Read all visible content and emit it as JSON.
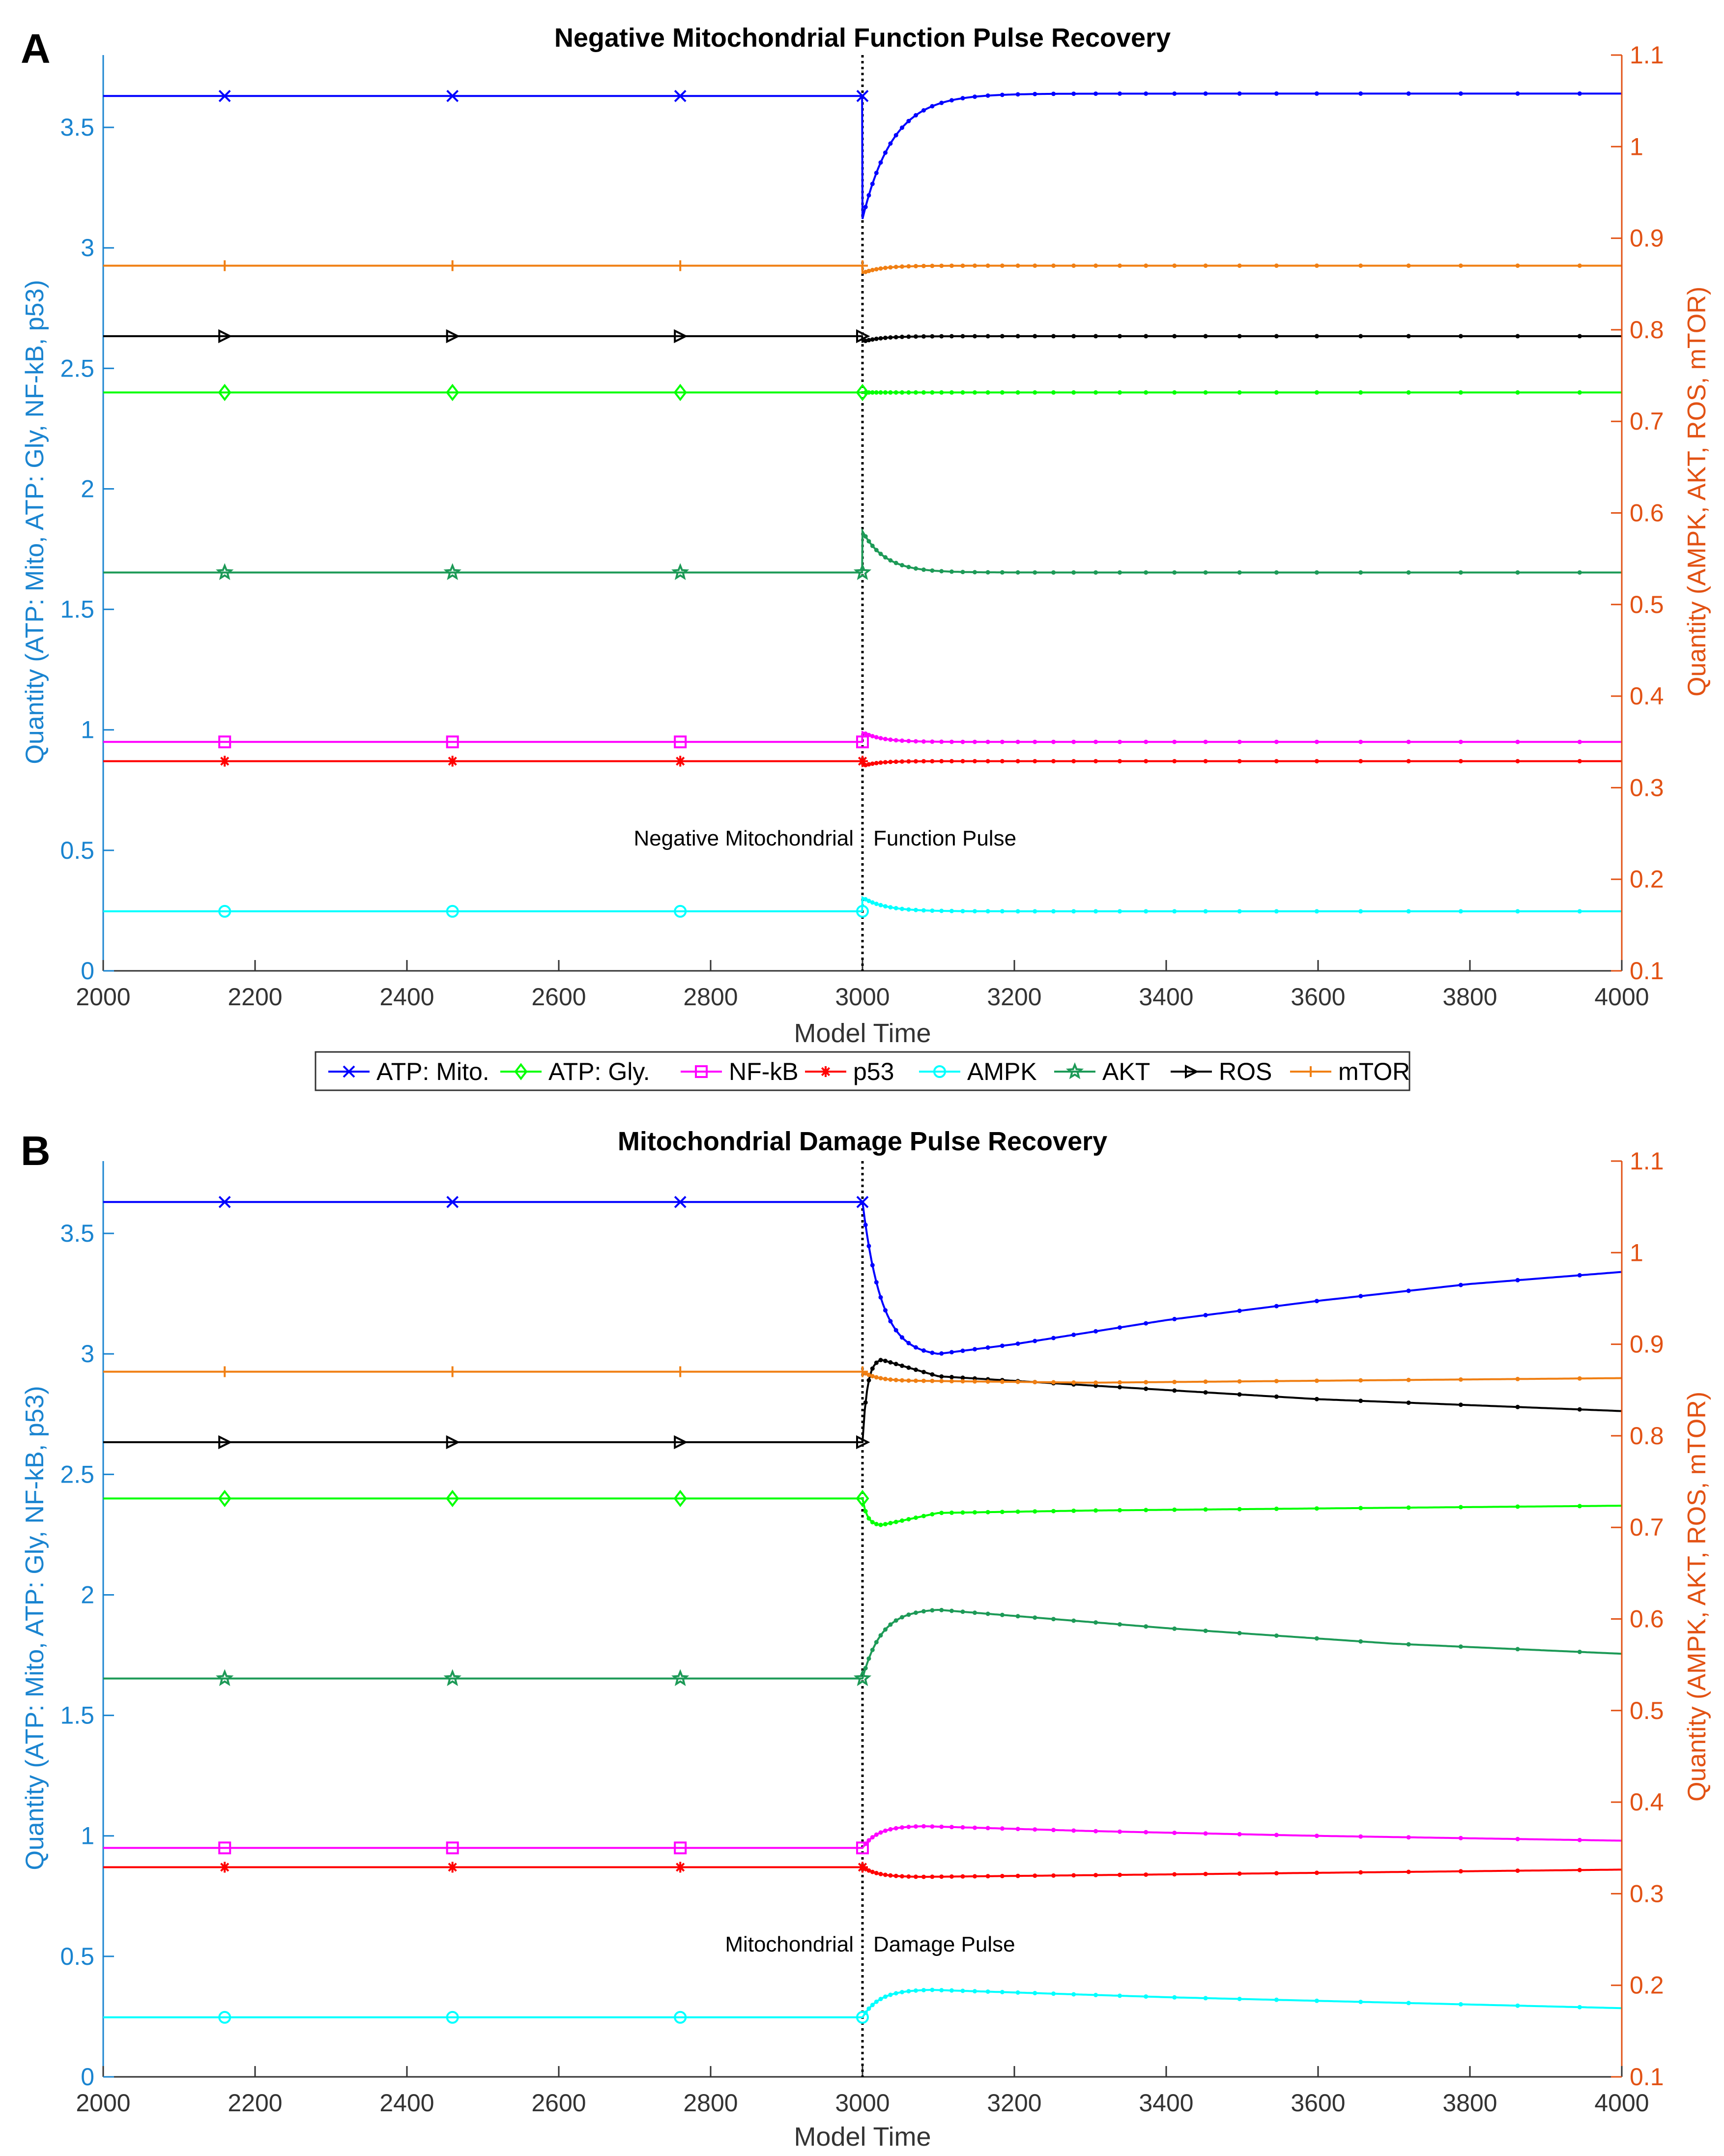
{
  "figure": {
    "legend_items": [
      {
        "label": "ATP: Mito.",
        "color": "#0000ff",
        "marker": "x"
      },
      {
        "label": "ATP: Gly.",
        "color": "#00ff00",
        "marker": "diamond"
      },
      {
        "label": "NF-kB",
        "color": "#ff00ff",
        "marker": "square"
      },
      {
        "label": "p53",
        "color": "#ff0000",
        "marker": "asterisk"
      },
      {
        "label": "AMPK",
        "color": "#00ffff",
        "marker": "circle"
      },
      {
        "label": "AKT",
        "color": "#1d9a57",
        "marker": "star"
      },
      {
        "label": "ROS",
        "color": "#000000",
        "marker": "triangle-right"
      },
      {
        "label": "mTOR",
        "color": "#f07f13",
        "marker": "plus"
      }
    ],
    "colors": {
      "left_axis": "#1a84d0",
      "right_axis": "#e25214",
      "pulse_line": "#000000"
    }
  },
  "chart_data": [
    {
      "panel_label": "A",
      "type": "line",
      "title": "Negative Mitochondrial Function Pulse Recovery",
      "xlabel": "Model Time",
      "ylabel_left": "Quantity (ATP: Mito, ATP: Gly, NF-kB, p53)",
      "ylabel_right": "Quantity (AMPK, AKT, ROS, mTOR)",
      "xlim": [
        2000,
        4000
      ],
      "ylim_left": [
        0,
        3.8
      ],
      "ylim_right": [
        0.1,
        1.1
      ],
      "x_ticks": [
        "2000",
        "2200",
        "2400",
        "2600",
        "2800",
        "3000",
        "3200",
        "3400",
        "3600",
        "3800",
        "4000"
      ],
      "y_ticks_left": [
        "0",
        "0.5",
        "1",
        "1.5",
        "2",
        "2.5",
        "3",
        "3.5"
      ],
      "y_ticks_right": [
        "0.1",
        "0.2",
        "0.3",
        "0.4",
        "0.5",
        "0.6",
        "0.7",
        "0.8",
        "0.9",
        "1",
        "1.1"
      ],
      "pulse": {
        "x": 3000,
        "label_left": "Negative Mitochondrial",
        "label_right": "Function Pulse",
        "label_y": 0.52
      },
      "series": [
        {
          "name": "ATP: Mito.",
          "axis": "left",
          "pre": 3.63,
          "post0": 3.12,
          "settle": 3.64,
          "tau": 40,
          "later": [],
          "markers": [
            2160,
            2460,
            2760,
            3000
          ]
        },
        {
          "name": "ATP: Gly.",
          "axis": "left",
          "pre": 2.4,
          "post0": 2.4,
          "settle": 2.4,
          "tau": 25,
          "later": [],
          "markers": [
            2160,
            2460,
            2760,
            3000
          ]
        },
        {
          "name": "NF-kB",
          "axis": "left",
          "pre": 0.95,
          "post0": 0.99,
          "settle": 0.95,
          "tau": 25,
          "later": [],
          "markers": [
            2160,
            2460,
            2760,
            3000
          ]
        },
        {
          "name": "p53",
          "axis": "left",
          "pre": 0.87,
          "post0": 0.85,
          "settle": 0.87,
          "tau": 20,
          "later": [],
          "markers": [
            2160,
            2460,
            2760,
            3000
          ]
        },
        {
          "name": "AMPK",
          "axis": "right",
          "pre": 0.165,
          "post0": 0.18,
          "settle": 0.165,
          "tau": 30,
          "later": [],
          "markers": [
            2160,
            2460,
            2760,
            3000
          ]
        },
        {
          "name": "AKT",
          "axis": "right",
          "pre": 0.535,
          "post0": 0.58,
          "settle": 0.535,
          "tau": 30,
          "later": [],
          "markers": [
            2160,
            2460,
            2760,
            3000
          ]
        },
        {
          "name": "ROS",
          "axis": "right",
          "pre": 0.793,
          "post0": 0.787,
          "settle": 0.793,
          "tau": 25,
          "later": [],
          "markers": [
            2160,
            2460,
            2760,
            3000
          ]
        },
        {
          "name": "mTOR",
          "axis": "right",
          "pre": 0.87,
          "post0": 0.862,
          "settle": 0.87,
          "tau": 25,
          "later": [],
          "markers": [
            2160,
            2460,
            2760,
            3000
          ]
        }
      ]
    },
    {
      "panel_label": "B",
      "type": "line",
      "title": "Mitochondrial Damage Pulse Recovery",
      "xlabel": "Model Time",
      "ylabel_left": "Quantity (ATP: Mito, ATP: Gly, NF-kB, p53)",
      "ylabel_right": "Quantity (AMPK, AKT, ROS, mTOR)",
      "xlim": [
        2000,
        4000
      ],
      "ylim_left": [
        0,
        3.8
      ],
      "ylim_right": [
        0.1,
        1.1
      ],
      "x_ticks": [
        "2000",
        "2200",
        "2400",
        "2600",
        "2800",
        "3000",
        "3200",
        "3400",
        "3600",
        "3800",
        "4000"
      ],
      "y_ticks_left": [
        "0",
        "0.5",
        "1",
        "1.5",
        "2",
        "2.5",
        "3",
        "3.5"
      ],
      "y_ticks_right": [
        "0.1",
        "0.2",
        "0.3",
        "0.4",
        "0.5",
        "0.6",
        "0.7",
        "0.8",
        "0.9",
        "1",
        "1.1"
      ],
      "pulse": {
        "x": 3000,
        "label_left": "Mitochondrial",
        "label_right": "Damage Pulse",
        "label_y": 0.52
      },
      "series": [
        {
          "name": "ATP: Mito.",
          "axis": "left",
          "pre": 3.63,
          "post0": 3.63,
          "settle": 3.0,
          "tau": 30,
          "later": [
            [
              3100,
              3.0
            ],
            [
              3200,
              3.04
            ],
            [
              3400,
              3.14
            ],
            [
              3600,
              3.22
            ],
            [
              3800,
              3.29
            ],
            [
              4000,
              3.34
            ]
          ],
          "markers": [
            2160,
            2460,
            2760,
            3000
          ]
        },
        {
          "name": "ATP: Gly.",
          "axis": "left",
          "pre": 2.4,
          "post0": 2.4,
          "settle": 2.29,
          "tau": 10,
          "later": [
            [
              3025,
              2.29
            ],
            [
              3100,
              2.34
            ],
            [
              3300,
              2.35
            ],
            [
              4000,
              2.37
            ]
          ],
          "markers": [
            2160,
            2460,
            2760,
            3000
          ]
        },
        {
          "name": "NF-kB",
          "axis": "left",
          "pre": 0.95,
          "post0": 0.95,
          "settle": 1.04,
          "tau": 18,
          "later": [
            [
              3080,
              1.04
            ],
            [
              3300,
              1.02
            ],
            [
              3600,
              1.0
            ],
            [
              4000,
              0.98
            ]
          ],
          "markers": [
            2160,
            2460,
            2760,
            3000
          ]
        },
        {
          "name": "p53",
          "axis": "left",
          "pre": 0.87,
          "post0": 0.87,
          "settle": 0.83,
          "tau": 18,
          "later": [
            [
              3080,
              0.83
            ],
            [
              3400,
              0.84
            ],
            [
              4000,
              0.86
            ]
          ],
          "markers": [
            2160,
            2460,
            2760,
            3000
          ]
        },
        {
          "name": "AMPK",
          "axis": "right",
          "pre": 0.165,
          "post0": 0.165,
          "settle": 0.195,
          "tau": 20,
          "later": [
            [
              3090,
              0.195
            ],
            [
              3400,
              0.187
            ],
            [
              4000,
              0.175
            ]
          ],
          "markers": [
            2160,
            2460,
            2760,
            3000
          ]
        },
        {
          "name": "AKT",
          "axis": "right",
          "pre": 0.535,
          "post0": 0.535,
          "settle": 0.61,
          "tau": 22,
          "later": [
            [
              3100,
              0.61
            ],
            [
              3400,
              0.59
            ],
            [
              3700,
              0.573
            ],
            [
              4000,
              0.562
            ]
          ],
          "markers": [
            2160,
            2460,
            2760,
            3000
          ]
        },
        {
          "name": "ROS",
          "axis": "right",
          "pre": 0.793,
          "post0": 0.793,
          "settle": 0.883,
          "tau": 8,
          "later": [
            [
              3025,
              0.883
            ],
            [
              3100,
              0.865
            ],
            [
              3300,
              0.855
            ],
            [
              3600,
              0.84
            ],
            [
              4000,
              0.827
            ]
          ],
          "markers": [
            2160,
            2460,
            2760,
            3000
          ]
        },
        {
          "name": "mTOR",
          "axis": "right",
          "pre": 0.87,
          "post0": 0.87,
          "settle": 0.86,
          "tau": 20,
          "later": [
            [
              3080,
              0.86
            ],
            [
              3300,
              0.858
            ],
            [
              4000,
              0.863
            ]
          ],
          "markers": [
            2160,
            2460,
            2760,
            3000
          ]
        }
      ]
    }
  ]
}
